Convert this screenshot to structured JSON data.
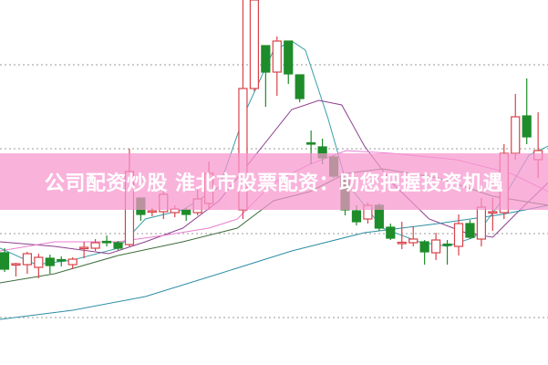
{
  "banner": {
    "text": "公司配资炒股 淮北市股票配资：助您把握投资机遇"
  },
  "chart_data": {
    "type": "candlestick",
    "title": "",
    "xlabel": "",
    "ylabel": "",
    "grid": true,
    "gridlines": [
      329,
      237,
      144,
      52
    ],
    "ylim": [
      0,
      400
    ],
    "colors": {
      "up": "#d8424a",
      "down": "#1e8c2a",
      "grid": "#999999"
    },
    "candles": [
      [
        0,
        123,
        128,
        102,
        105
      ],
      [
        1,
        110,
        112,
        97,
        111
      ],
      [
        2,
        110,
        124,
        100,
        122
      ],
      [
        3,
        107,
        122,
        95,
        118
      ],
      [
        4,
        117,
        121,
        100,
        109
      ],
      [
        5,
        115.5,
        119,
        108,
        115
      ],
      [
        6,
        110,
        118,
        105,
        116
      ],
      [
        7,
        128,
        135,
        117,
        129
      ],
      [
        8,
        128,
        138,
        125,
        134
      ],
      [
        9,
        135.5,
        142,
        130,
        135
      ],
      [
        10,
        134,
        136,
        126,
        128
      ],
      [
        11,
        132,
        237,
        130,
        212
      ],
      [
        12,
        183,
        183,
        158,
        165
      ],
      [
        13,
        168,
        172,
        163,
        169
      ],
      [
        14,
        168,
        192,
        160,
        187
      ],
      [
        15,
        167,
        175,
        162,
        171
      ],
      [
        16,
        170,
        172,
        158,
        165
      ],
      [
        17,
        167,
        195,
        164,
        182
      ],
      [
        18,
        177,
        223,
        170,
        210
      ],
      [
        21,
        170,
        400,
        160,
        303
      ],
      [
        22,
        303,
        400,
        300,
        400
      ],
      [
        23,
        350,
        350,
        283,
        321
      ],
      [
        24,
        321,
        360,
        295,
        355
      ],
      [
        25,
        355,
        355,
        308,
        319
      ],
      [
        26,
        318,
        318,
        288,
        292
      ],
      [
        27,
        243.5,
        257,
        220,
        243
      ],
      [
        28,
        239,
        248,
        220,
        227
      ],
      [
        29,
        228,
        230,
        205,
        207
      ],
      [
        30,
        205,
        205,
        164,
        170
      ],
      [
        31,
        169,
        175,
        153,
        157
      ],
      [
        32,
        160,
        178,
        155,
        175
      ],
      [
        33,
        175,
        177,
        147,
        150
      ],
      [
        34,
        151,
        155,
        137,
        139
      ],
      [
        35,
        134,
        157,
        127,
        134.5
      ],
      [
        36,
        134,
        152,
        130,
        138
      ],
      [
        37,
        135,
        137,
        110,
        124
      ],
      [
        38,
        123,
        145,
        115,
        137
      ],
      [
        39,
        132.5,
        137,
        110,
        132
      ],
      [
        40,
        130,
        165,
        120,
        155
      ],
      [
        41,
        155,
        159,
        138,
        140
      ],
      [
        42,
        138,
        183,
        130,
        173
      ],
      [
        43,
        167,
        183,
        147,
        168
      ],
      [
        44,
        167,
        242,
        160,
        232
      ],
      [
        45,
        232,
        297,
        225,
        272
      ],
      [
        46,
        273,
        314,
        242,
        250
      ],
      [
        47,
        225,
        277,
        205,
        235
      ]
    ],
    "moving_averages": [
      {
        "color": "#3a9fa8",
        "points": [
          [
            -0.4,
            128
          ],
          [
            2.8,
            110
          ],
          [
            6,
            115
          ],
          [
            10,
            128
          ],
          [
            12.4,
            160
          ],
          [
            15.7,
            170
          ],
          [
            18.9,
            195
          ],
          [
            21.3,
            280
          ],
          [
            23.7,
            345
          ],
          [
            25.3,
            355
          ],
          [
            26.5,
            345
          ],
          [
            28.5,
            270
          ],
          [
            30.1,
            200
          ],
          [
            33.3,
            150
          ],
          [
            36.5,
            135
          ],
          [
            39,
            130
          ],
          [
            41.4,
            140
          ],
          [
            43.8,
            180
          ],
          [
            46.2,
            230
          ],
          [
            47.9,
            240
          ]
        ]
      },
      {
        "color": "#8e3f8e",
        "points": [
          [
            -0.4,
            135
          ],
          [
            4.4,
            130
          ],
          [
            9.2,
            122
          ],
          [
            12.4,
            135
          ],
          [
            15.7,
            150
          ],
          [
            18.9,
            180
          ],
          [
            22.1,
            230
          ],
          [
            25.3,
            280
          ],
          [
            27.7,
            290
          ],
          [
            29.7,
            285
          ],
          [
            31.7,
            240
          ],
          [
            34.1,
            200
          ],
          [
            37.4,
            160
          ],
          [
            40.6,
            145
          ],
          [
            43,
            140
          ],
          [
            45.4,
            170
          ],
          [
            47.9,
            200
          ]
        ]
      },
      {
        "color": "#e87fd0",
        "points": [
          [
            -0.4,
            125
          ],
          [
            4.4,
            135
          ],
          [
            10,
            135
          ],
          [
            14,
            142
          ],
          [
            18,
            150
          ],
          [
            20.5,
            160
          ],
          [
            23.7,
            200
          ],
          [
            26.9,
            220
          ],
          [
            30.1,
            235
          ],
          [
            34.1,
            232
          ],
          [
            39.8,
            225
          ],
          [
            44.6,
            210
          ],
          [
            47.9,
            190
          ]
        ]
      },
      {
        "color": "#3f6e3f",
        "points": [
          [
            -0.4,
            90
          ],
          [
            4.4,
            100
          ],
          [
            10,
            120
          ],
          [
            15.7,
            135
          ],
          [
            20.5,
            150
          ],
          [
            23.7,
            180
          ],
          [
            26.9,
            190
          ],
          [
            30.1,
            210
          ],
          [
            33.3,
            215
          ],
          [
            38.2,
            205
          ],
          [
            43,
            185
          ],
          [
            47.9,
            175
          ]
        ]
      },
      {
        "color": "#2e8fa6",
        "points": [
          [
            -0.4,
            50
          ],
          [
            6,
            60
          ],
          [
            12.4,
            75
          ],
          [
            18.9,
            100
          ],
          [
            25.3,
            125
          ],
          [
            31.7,
            145
          ],
          [
            38.2,
            155
          ],
          [
            43.8,
            165
          ],
          [
            47.9,
            175
          ]
        ]
      }
    ]
  }
}
